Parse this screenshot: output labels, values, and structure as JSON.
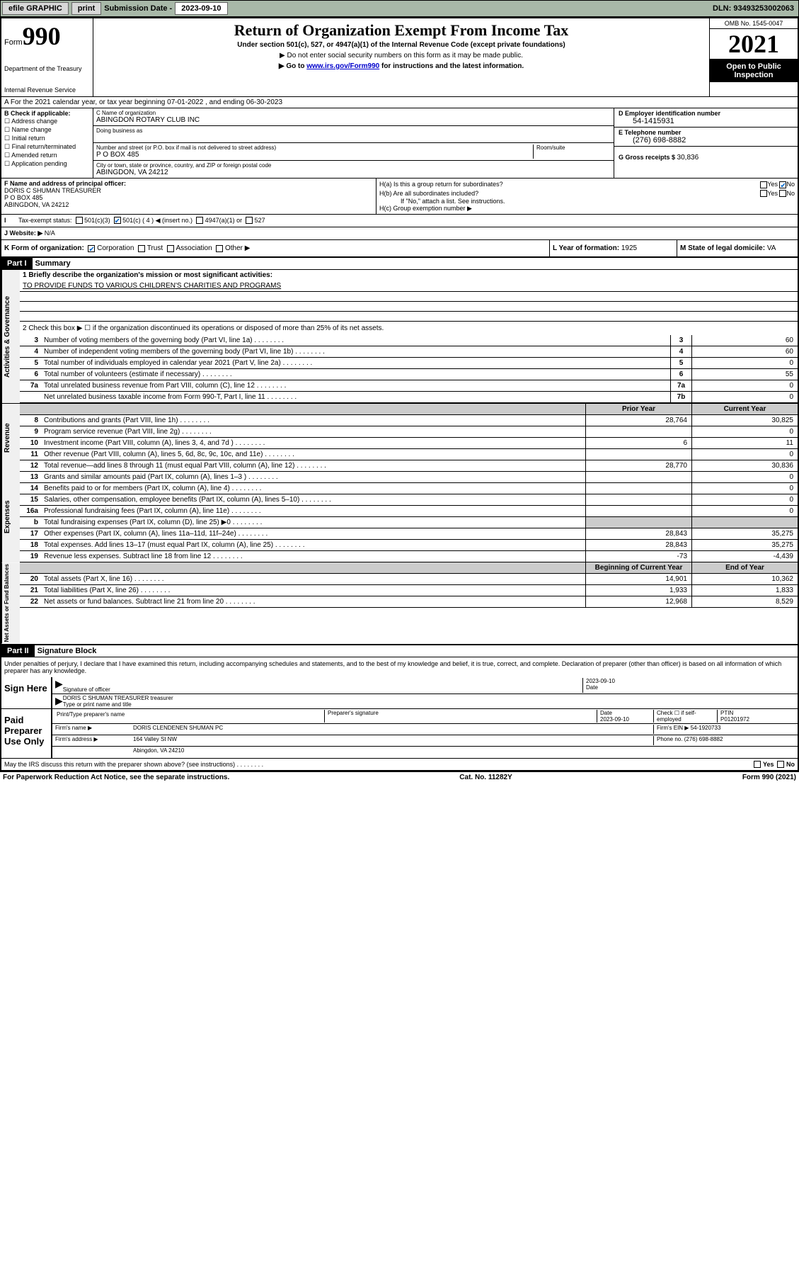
{
  "topbar": {
    "efile": "efile GRAPHIC",
    "print": "print",
    "sub_label": "Submission Date - ",
    "sub_date": "2023-09-10",
    "dln": "DLN: 93493253002063"
  },
  "header": {
    "form_label": "Form",
    "form_num": "990",
    "dept": "Department of the Treasury",
    "irs": "Internal Revenue Service",
    "title": "Return of Organization Exempt From Income Tax",
    "sub": "Under section 501(c), 527, or 4947(a)(1) of the Internal Revenue Code (except private foundations)",
    "note1": "▶ Do not enter social security numbers on this form as it may be made public.",
    "note2_pre": "▶ Go to ",
    "note2_link": "www.irs.gov/Form990",
    "note2_post": " for instructions and the latest information.",
    "omb": "OMB No. 1545-0047",
    "year": "2021",
    "open": "Open to Public Inspection"
  },
  "row_a": "A For the 2021 calendar year, or tax year beginning 07-01-2022    , and ending 06-30-2023",
  "col_b": {
    "label": "B Check if applicable:",
    "items": [
      "Address change",
      "Name change",
      "Initial return",
      "Final return/terminated",
      "Amended return",
      "Application pending"
    ]
  },
  "col_c": {
    "name_label": "C Name of organization",
    "name": "ABINGDON ROTARY CLUB INC",
    "dba_label": "Doing business as",
    "dba": "",
    "addr_label": "Number and street (or P.O. box if mail is not delivered to street address)",
    "room_label": "Room/suite",
    "addr": "P O BOX 485",
    "city_label": "City or town, state or province, country, and ZIP or foreign postal code",
    "city": "ABINGDON, VA  24212"
  },
  "col_d": {
    "label": "D Employer identification number",
    "val": "54-1415931",
    "e_label": "E Telephone number",
    "e_val": "(276) 698-8882",
    "g_label": "G Gross receipts $ ",
    "g_val": "30,836"
  },
  "col_f": {
    "label": "F  Name and address of principal officer:",
    "name": "DORIS C SHUMAN TREASURER",
    "addr1": "P O BOX 485",
    "addr2": "ABINGDON, VA  24212"
  },
  "col_h": {
    "ha": "H(a)  Is this a group return for subordinates?",
    "hb": "H(b)  Are all subordinates included?",
    "hb_note": "If \"No,\" attach a list. See instructions.",
    "hc": "H(c)  Group exemption number ▶",
    "yes": "Yes",
    "no": "No"
  },
  "row_i": {
    "label": "Tax-exempt status:",
    "o1": "501(c)(3)",
    "o2": "501(c) ( 4 ) ◀ (insert no.)",
    "o3": "4947(a)(1) or",
    "o4": "527"
  },
  "row_j": {
    "label": "J   Website: ▶",
    "val": "N/A"
  },
  "row_k": {
    "label": "K Form of organization:",
    "o1": "Corporation",
    "o2": "Trust",
    "o3": "Association",
    "o4": "Other ▶"
  },
  "row_l": {
    "label": "L Year of formation: ",
    "val": "1925"
  },
  "row_m": {
    "label": "M State of legal domicile: ",
    "val": "VA"
  },
  "part1": {
    "hdr": "Part I",
    "title": "Summary",
    "line1_label": "1   Briefly describe the organization's mission or most significant activities:",
    "mission": "TO PROVIDE FUNDS TO VARIOUS CHILDREN'S CHARITIES AND PROGRAMS",
    "line2": "2   Check this box ▶ ☐ if the organization discontinued its operations or disposed of more than 25% of its net assets.",
    "side_gov": "Activities & Governance",
    "side_rev": "Revenue",
    "side_exp": "Expenses",
    "side_net": "Net Assets or Fund Balances",
    "prior_hdr": "Prior Year",
    "curr_hdr": "Current Year",
    "begin_hdr": "Beginning of Current Year",
    "end_hdr": "End of Year",
    "lines_gov": [
      {
        "n": "3",
        "t": "Number of voting members of the governing body (Part VI, line 1a)",
        "box": "3",
        "v": "60"
      },
      {
        "n": "4",
        "t": "Number of independent voting members of the governing body (Part VI, line 1b)",
        "box": "4",
        "v": "60"
      },
      {
        "n": "5",
        "t": "Total number of individuals employed in calendar year 2021 (Part V, line 2a)",
        "box": "5",
        "v": "0"
      },
      {
        "n": "6",
        "t": "Total number of volunteers (estimate if necessary)",
        "box": "6",
        "v": "55"
      },
      {
        "n": "7a",
        "t": "Total unrelated business revenue from Part VIII, column (C), line 12",
        "box": "7a",
        "v": "0"
      },
      {
        "n": "",
        "t": "Net unrelated business taxable income from Form 990-T, Part I, line 11",
        "box": "7b",
        "v": "0"
      }
    ],
    "lines_rev": [
      {
        "n": "8",
        "t": "Contributions and grants (Part VIII, line 1h)",
        "p": "28,764",
        "c": "30,825"
      },
      {
        "n": "9",
        "t": "Program service revenue (Part VIII, line 2g)",
        "p": "",
        "c": "0"
      },
      {
        "n": "10",
        "t": "Investment income (Part VIII, column (A), lines 3, 4, and 7d )",
        "p": "6",
        "c": "11"
      },
      {
        "n": "11",
        "t": "Other revenue (Part VIII, column (A), lines 5, 6d, 8c, 9c, 10c, and 11e)",
        "p": "",
        "c": "0"
      },
      {
        "n": "12",
        "t": "Total revenue—add lines 8 through 11 (must equal Part VIII, column (A), line 12)",
        "p": "28,770",
        "c": "30,836"
      }
    ],
    "lines_exp": [
      {
        "n": "13",
        "t": "Grants and similar amounts paid (Part IX, column (A), lines 1–3 )",
        "p": "",
        "c": "0"
      },
      {
        "n": "14",
        "t": "Benefits paid to or for members (Part IX, column (A), line 4)",
        "p": "",
        "c": "0"
      },
      {
        "n": "15",
        "t": "Salaries, other compensation, employee benefits (Part IX, column (A), lines 5–10)",
        "p": "",
        "c": "0"
      },
      {
        "n": "16a",
        "t": "Professional fundraising fees (Part IX, column (A), line 11e)",
        "p": "",
        "c": "0"
      },
      {
        "n": "b",
        "t": "Total fundraising expenses (Part IX, column (D), line 25) ▶0",
        "p": "SHADE",
        "c": "SHADE"
      },
      {
        "n": "17",
        "t": "Other expenses (Part IX, column (A), lines 11a–11d, 11f–24e)",
        "p": "28,843",
        "c": "35,275"
      },
      {
        "n": "18",
        "t": "Total expenses. Add lines 13–17 (must equal Part IX, column (A), line 25)",
        "p": "28,843",
        "c": "35,275"
      },
      {
        "n": "19",
        "t": "Revenue less expenses. Subtract line 18 from line 12",
        "p": "-73",
        "c": "-4,439"
      }
    ],
    "lines_net": [
      {
        "n": "20",
        "t": "Total assets (Part X, line 16)",
        "p": "14,901",
        "c": "10,362"
      },
      {
        "n": "21",
        "t": "Total liabilities (Part X, line 26)",
        "p": "1,933",
        "c": "1,833"
      },
      {
        "n": "22",
        "t": "Net assets or fund balances. Subtract line 21 from line 20",
        "p": "12,968",
        "c": "8,529"
      }
    ]
  },
  "part2": {
    "hdr": "Part II",
    "title": "Signature Block",
    "decl": "Under penalties of perjury, I declare that I have examined this return, including accompanying schedules and statements, and to the best of my knowledge and belief, it is true, correct, and complete. Declaration of preparer (other than officer) is based on all information of which preparer has any knowledge.",
    "sign_here": "Sign Here",
    "sig_officer": "Signature of officer",
    "sig_date_label": "Date",
    "sig_date": "2023-09-10",
    "sig_name": "DORIS C SHUMAN TREASURER  treasurer",
    "sig_name_label": "Type or print name and title",
    "paid": "Paid Preparer Use Only",
    "prep_name_label": "Print/Type preparer's name",
    "prep_sig_label": "Preparer's signature",
    "prep_date_label": "Date",
    "prep_date": "2023-09-10",
    "prep_check": "Check ☐ if self-employed",
    "ptin_label": "PTIN",
    "ptin": "P01201972",
    "firm_name_label": "Firm's name    ▶",
    "firm_name": "DORIS CLENDENEN SHUMAN PC",
    "firm_ein_label": "Firm's EIN ▶",
    "firm_ein": "54-1920733",
    "firm_addr_label": "Firm's address ▶",
    "firm_addr1": "164 Valley St NW",
    "firm_addr2": "Abingdon, VA  24210",
    "phone_label": "Phone no.",
    "phone": "(276) 698-8882",
    "discuss": "May the IRS discuss this return with the preparer shown above? (see instructions)"
  },
  "footer": {
    "left": "For Paperwork Reduction Act Notice, see the separate instructions.",
    "mid": "Cat. No. 11282Y",
    "right": "Form 990 (2021)"
  }
}
